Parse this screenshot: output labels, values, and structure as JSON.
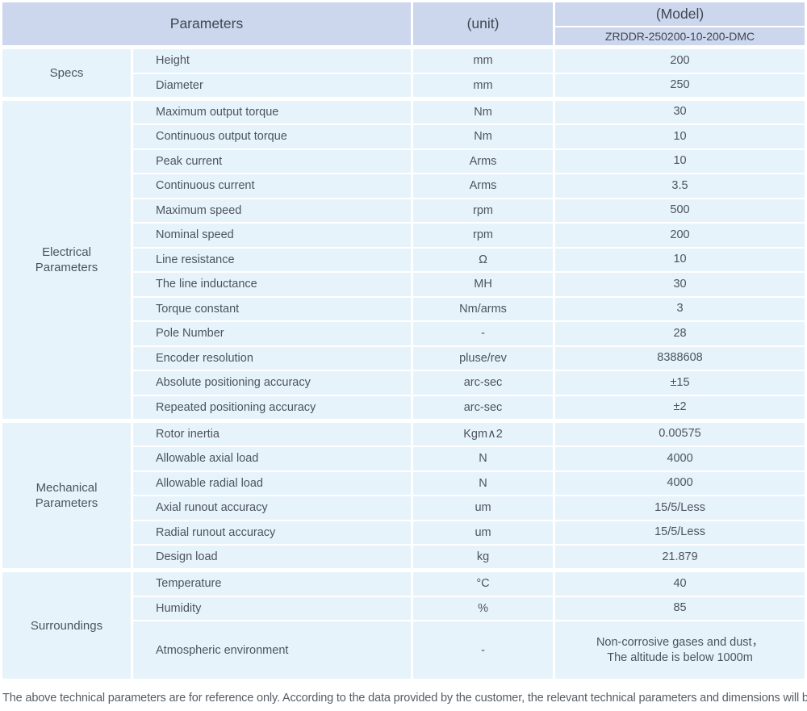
{
  "header": {
    "parameters_label": "Parameters",
    "unit_label": "(unit)",
    "model_label": "(Model)",
    "model_value": "ZRDDR-250200-10-200-DMC"
  },
  "groups": [
    {
      "label": "Specs",
      "rows": [
        [
          "Height",
          "mm",
          "200"
        ],
        [
          "Diameter",
          "mm",
          "250"
        ]
      ]
    },
    {
      "label": "Electrical\nParameters",
      "rows": [
        [
          "Maximum output torque",
          "Nm",
          "30"
        ],
        [
          "Continuous output torque",
          "Nm",
          "10"
        ],
        [
          "Peak current",
          "Arms",
          "10"
        ],
        [
          "Continuous current",
          "Arms",
          "3.5"
        ],
        [
          "Maximum speed",
          "rpm",
          "500"
        ],
        [
          "Nominal speed",
          "rpm",
          "200"
        ],
        [
          "Line resistance",
          "Ω",
          "10"
        ],
        [
          "The line inductance",
          "MH",
          "30"
        ],
        [
          "Torque constant",
          "Nm/arms",
          "3"
        ],
        [
          "Pole Number",
          "-",
          "28"
        ],
        [
          "Encoder resolution",
          "pluse/rev",
          "8388608"
        ],
        [
          "Absolute positioning accuracy",
          "arc-sec",
          "±15"
        ],
        [
          "Repeated positioning accuracy",
          "arc-sec",
          "±2"
        ]
      ]
    },
    {
      "label": "Mechanical\nParameters",
      "rows": [
        [
          "Rotor inertia",
          "Kgm∧2",
          "0.00575"
        ],
        [
          "Allowable axial load",
          "N",
          "4000"
        ],
        [
          "Allowable radial load",
          "N",
          "4000"
        ],
        [
          "Axial runout accuracy",
          "um",
          "15/5/Less"
        ],
        [
          "Radial runout accuracy",
          "um",
          "15/5/Less"
        ],
        [
          "Design load",
          "kg",
          "21.879"
        ]
      ]
    },
    {
      "label": "Surroundings",
      "rows": [
        [
          "Temperature",
          "°C",
          "40"
        ],
        [
          "Humidity",
          "%",
          "85"
        ],
        [
          "Atmospheric environment",
          "-",
          "Non-corrosive gases and dust，\nThe altitude is below 1000m"
        ]
      ]
    }
  ],
  "footnote": "The above technical parameters are for reference only. According to the data provided by the customer, the relevant technical parameters and dimensions will be issued.",
  "colors": {
    "header_bg": "#ccd6ec",
    "cell_bg": "#e7f3fb",
    "text": "#4b545e",
    "divider": "#ffffff"
  }
}
